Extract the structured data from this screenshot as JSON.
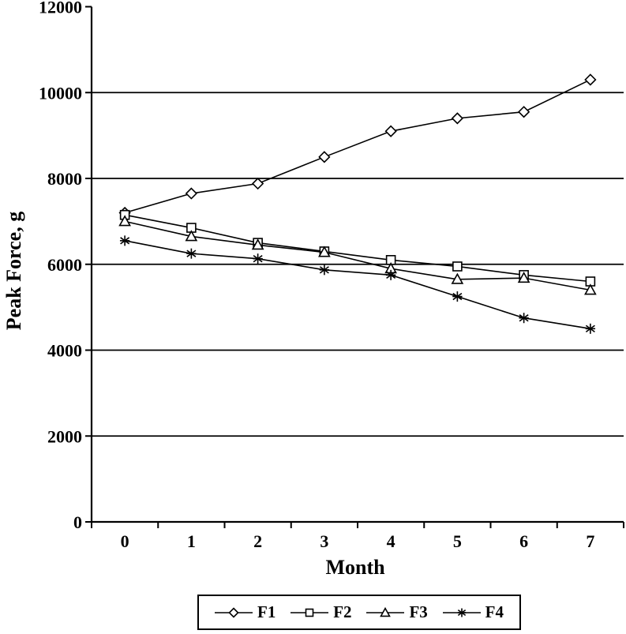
{
  "figure": {
    "background_color": "#ffffff",
    "ink_color": "#000000"
  },
  "chart_data": {
    "type": "line",
    "title": "",
    "xlabel": "Month",
    "ylabel": "Peak Force, g",
    "x_categories": [
      "0",
      "1",
      "2",
      "3",
      "4",
      "5",
      "6",
      "7"
    ],
    "ylim": [
      0,
      12000
    ],
    "ytick_step": 2000,
    "yticks": [
      0,
      2000,
      4000,
      6000,
      8000,
      10000,
      12000
    ],
    "gridline_values": [
      2000,
      4000,
      6000,
      8000,
      10000
    ],
    "grid": "horizontal",
    "legend_position": "bottom",
    "series": [
      {
        "name": "F1",
        "marker": "diamond",
        "values": [
          7200,
          7650,
          7880,
          8500,
          9100,
          9400,
          9550,
          10300
        ]
      },
      {
        "name": "F2",
        "marker": "square",
        "values": [
          7150,
          6850,
          6500,
          6300,
          6100,
          5950,
          5750,
          5600
        ]
      },
      {
        "name": "F3",
        "marker": "triangle",
        "values": [
          7000,
          6650,
          6450,
          6280,
          5900,
          5650,
          5680,
          5400
        ]
      },
      {
        "name": "F4",
        "marker": "star",
        "values": [
          6550,
          6250,
          6130,
          5870,
          5750,
          5250,
          4750,
          4500
        ]
      }
    ]
  }
}
